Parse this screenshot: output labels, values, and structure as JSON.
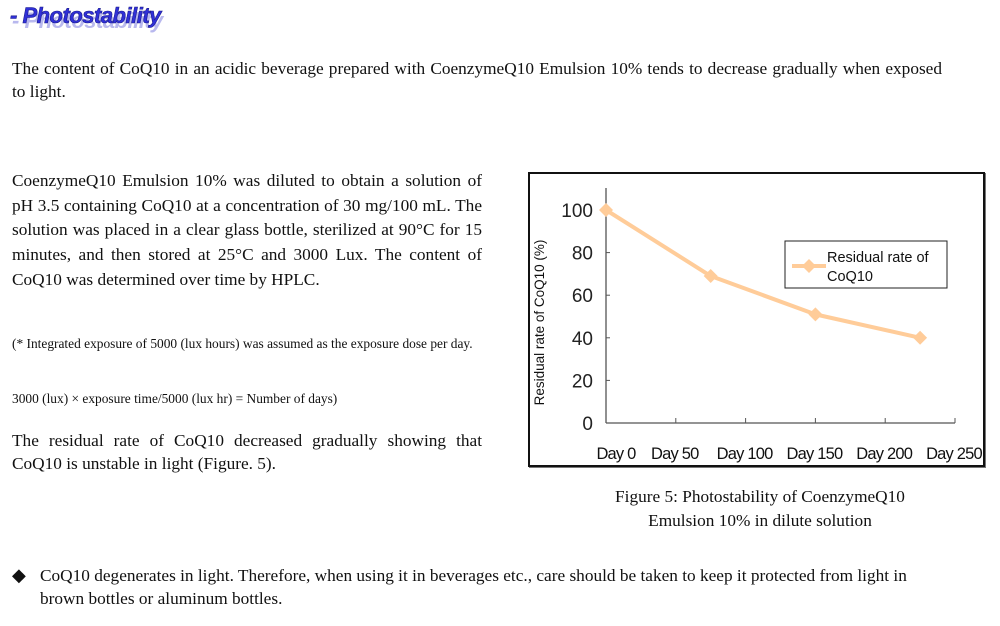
{
  "section_title": "- Photostability",
  "intro": "The content of CoQ10 in an acidic beverage prepared with CoenzymeQ10 Emulsion 10% tends to decrease gradually when exposed to light.",
  "method": "CoenzymeQ10 Emulsion 10% was diluted to obtain a solution of pH 3.5 containing CoQ10 at a concentration of 30 mg/100 mL.   The solution was placed in a clear glass bottle, sterilized at 90°C for 15 minutes, and then stored at 25°C and 3000 Lux.   The content of CoQ10 was determined over time by HPLC.",
  "note1": "(* Integrated exposure of 5000 (lux hours) was assumed as the exposure dose per day.",
  "note2": "3000 (lux) × exposure time/5000 (lux hr) = Number of days)",
  "result": "The residual rate of CoQ10 decreased gradually showing that CoQ10 is unstable in light (Figure. 5).",
  "caption_line1": "Figure 5: Photostability of CoenzymeQ10",
  "caption_line2": "Emulsion 10% in dilute solution",
  "bullet_icon": "diamond-bullet-icon",
  "bullet": "CoQ10 degenerates in light.   Therefore, when using it in beverages etc., care should be taken to keep it protected from light in brown bottles or aluminum bottles.",
  "chart_data": {
    "type": "line",
    "title": "",
    "xlabel": "",
    "ylabel": "Residual rate of CoQ10 (%)",
    "xlim": [
      0,
      250
    ],
    "ylim": [
      0,
      100
    ],
    "x_ticks": [
      0,
      50,
      100,
      150,
      200,
      250
    ],
    "x_tick_labels": [
      "Day 0",
      "Day 50",
      "Day 100",
      "Day 150",
      "Day 200",
      "Day 250"
    ],
    "y_ticks": [
      0,
      20,
      40,
      60,
      80,
      100
    ],
    "y_tick_labels": [
      "0",
      "20",
      "40",
      "60",
      "80",
      "100"
    ],
    "grid": false,
    "legend_position": "top-right",
    "series": [
      {
        "name": "Residual rate of CoQ10",
        "legend_line1": "Residual rate of",
        "legend_line2": "CoQ10",
        "color": "#FFCC99",
        "marker": "diamond",
        "x": [
          0,
          75,
          150,
          225
        ],
        "values": [
          100,
          69,
          51,
          40
        ]
      }
    ]
  }
}
